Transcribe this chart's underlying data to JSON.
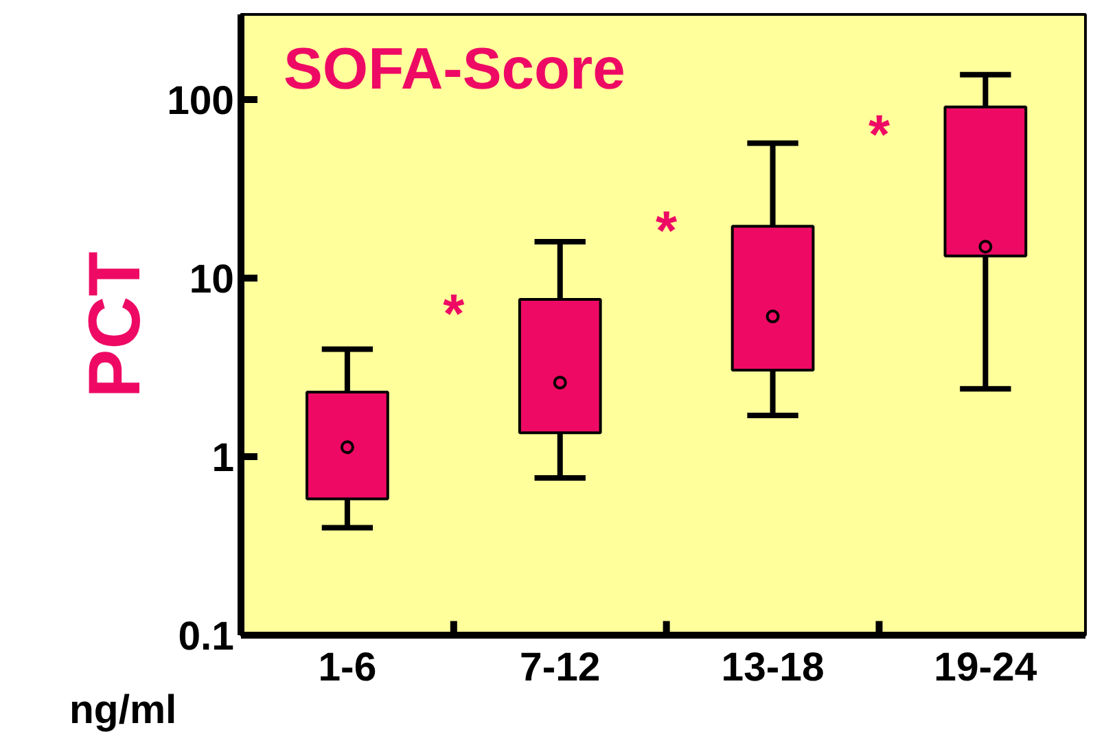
{
  "chart_data": {
    "type": "box",
    "title": "SOFA-Score",
    "ylabel": "PCT",
    "categories": [
      "1-6",
      "7-12",
      "13-18",
      "19-24"
    ],
    "boxes": [
      {
        "low": 0.4,
        "q1": 0.58,
        "median": 1.13,
        "q3": 2.3,
        "high": 4.0
      },
      {
        "low": 0.76,
        "q1": 1.36,
        "median": 2.6,
        "q3": 7.6,
        "high": 16
      },
      {
        "low": 1.7,
        "q1": 3.05,
        "median": 6.1,
        "q3": 19.5,
        "high": 57
      },
      {
        "low": 2.4,
        "q1": 13.3,
        "median": 15,
        "q3": 91,
        "high": 138
      }
    ],
    "color": "#ee0a64",
    "log": true,
    "ylim": [
      0.1,
      300
    ],
    "yticks": [
      0.1,
      1,
      10,
      100
    ],
    "grid": false,
    "annotations": [
      "*",
      "*",
      "*",
      "ng/ml"
    ]
  }
}
